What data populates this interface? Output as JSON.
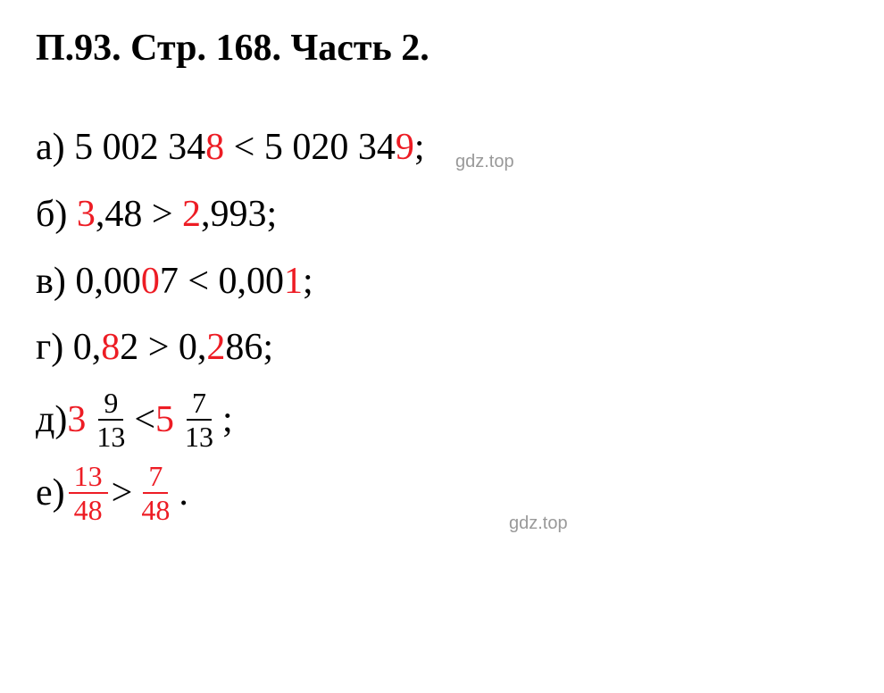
{
  "document": {
    "background_color": "#ffffff",
    "text_color": "#000000",
    "highlight_color": "#ed1c24",
    "watermark_color": "#999999",
    "font_family": "Times New Roman",
    "base_fontsize": 42,
    "fraction_fontsize": 32,
    "title_fontweight": "bold"
  },
  "title": {
    "p_label": "П.",
    "p_num": "93",
    "sep1": ". ",
    "str_label": "Стр. ",
    "str_num": "168",
    "sep2": ". ",
    "part_label": "Часть ",
    "part_num": "2",
    "end": "."
  },
  "lines": {
    "a": {
      "label": "а) ",
      "left_pre": "5 002 34",
      "left_red": "8",
      "op": " < ",
      "right_pre": "5 020 34",
      "right_red": "9",
      "end": ";"
    },
    "b": {
      "label": "б) ",
      "left_red": "3",
      "left_post": ",48",
      "op": " > ",
      "right_red": "2",
      "right_post": ",993",
      "end": ";"
    },
    "v": {
      "label": "в) ",
      "left_pre": "0,00",
      "left_red": "0",
      "left_post": "7",
      "op": " < ",
      "right_pre": "0,00",
      "right_red": "1",
      "end": ";"
    },
    "g": {
      "label": "г) ",
      "left_pre": "0,",
      "left_red": "8",
      "left_post": "2",
      "op": " > ",
      "right_pre": "0,",
      "right_red": "2",
      "right_post": "86",
      "end": ";"
    },
    "d": {
      "label": "д) ",
      "left_whole": "3",
      "left_num": "9",
      "left_den": "13",
      "op": " < ",
      "right_whole": "5",
      "right_num": "7",
      "right_den": "13",
      "end": ";"
    },
    "e": {
      "label": "е) ",
      "left_num": "13",
      "left_den": "48",
      "op": "  >  ",
      "right_num": "7",
      "right_den": "48",
      "end": "."
    }
  },
  "watermarks": {
    "wm1": "gdz.top",
    "wm2": "gdz.top"
  }
}
